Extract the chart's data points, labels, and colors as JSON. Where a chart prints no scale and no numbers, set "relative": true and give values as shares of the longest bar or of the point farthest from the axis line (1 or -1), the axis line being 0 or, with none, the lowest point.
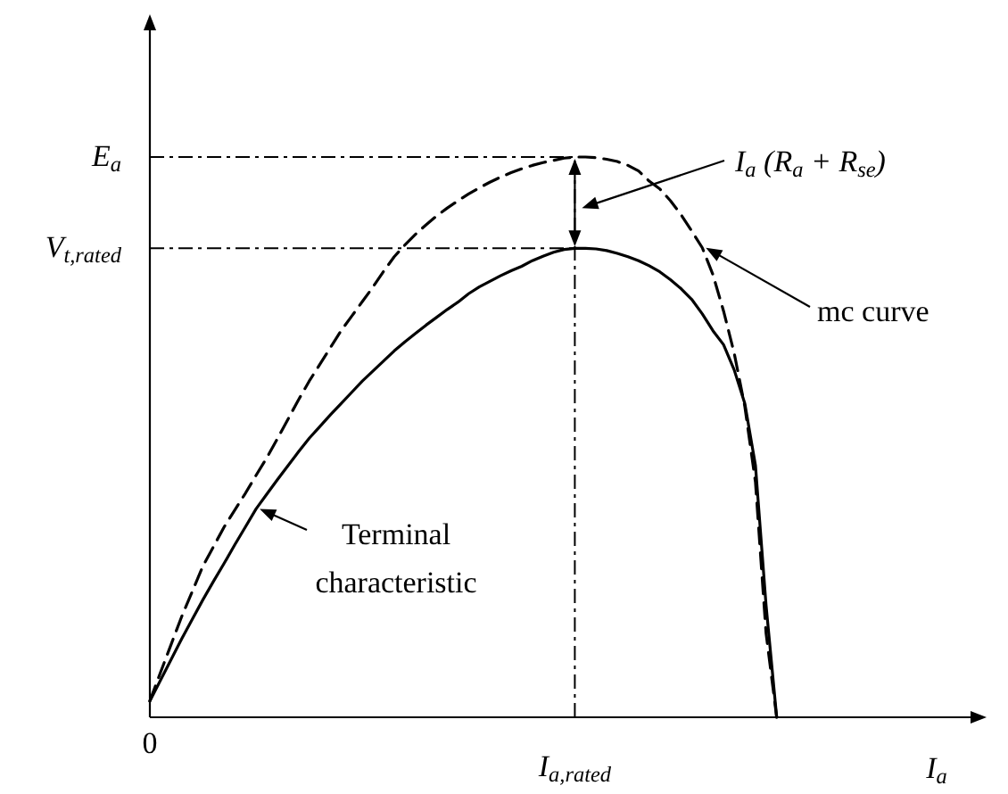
{
  "chart_data": {
    "type": "line",
    "relative": true,
    "xlabel": "I$_{a}$",
    "categories": [
      "0",
      null,
      null,
      null,
      null,
      null,
      null,
      null,
      null,
      null,
      null,
      null,
      null,
      null,
      null,
      null,
      null,
      null,
      null,
      null,
      null,
      null,
      null,
      null,
      null,
      null,
      null,
      null,
      null,
      null,
      null,
      null,
      null,
      null,
      null,
      null,
      null,
      null,
      null,
      null,
      "I$_{a,rated}$",
      null,
      null,
      null,
      null,
      null,
      null,
      null,
      null,
      null,
      null,
      null,
      null,
      null,
      null,
      null,
      null,
      null,
      null,
      null
    ],
    "series": [
      {
        "name": "mc curve",
        "color": "#000000",
        "line_style": "dashed",
        "values": [
          0.029,
          0.08,
          0.13,
          0.18,
          0.225,
          0.27,
          0.305,
          0.34,
          0.37,
          0.4,
          0.432,
          0.463,
          0.497,
          0.532,
          0.567,
          0.6,
          0.63,
          0.66,
          0.69,
          0.716,
          0.742,
          0.768,
          0.796,
          0.822,
          0.843,
          0.862,
          0.879,
          0.895,
          0.909,
          0.922,
          0.934,
          0.945,
          0.955,
          0.964,
          0.972,
          0.979,
          0.985,
          0.99,
          0.994,
          0.998,
          1.0,
          1.0,
          0.999,
          0.996,
          0.992,
          0.985,
          0.975,
          0.957,
          0.943,
          0.922,
          0.897,
          0.868,
          0.838,
          0.79,
          0.725,
          0.65,
          0.555,
          0.42,
          0.15,
          0
        ]
      },
      {
        "name": "Terminal characteristic",
        "color": "#000000",
        "line_style": "solid",
        "values": [
          0.029,
          0.066,
          0.103,
          0.14,
          0.175,
          0.21,
          0.243,
          0.275,
          0.308,
          0.34,
          0.372,
          0.398,
          0.424,
          0.449,
          0.474,
          0.498,
          0.519,
          0.54,
          0.56,
          0.58,
          0.6,
          0.618,
          0.636,
          0.654,
          0.67,
          0.685,
          0.7,
          0.714,
          0.728,
          0.741,
          0.756,
          0.768,
          0.778,
          0.788,
          0.797,
          0.805,
          0.815,
          0.823,
          0.83,
          0.835,
          0.837,
          0.837,
          0.836,
          0.833,
          0.828,
          0.822,
          0.815,
          0.806,
          0.795,
          0.781,
          0.765,
          0.746,
          0.72,
          0.69,
          0.665,
          0.62,
          0.56,
          0.45,
          0.2,
          0
        ]
      }
    ],
    "ref_lines": [
      {
        "axis": "y",
        "value": 1,
        "label": "E$_{a}$",
        "line_style": "dashdot"
      },
      {
        "axis": "y",
        "value": 0.837,
        "label": "V$_{t,rated}$",
        "line_style": "dashdot"
      }
    ],
    "annotations": [
      "I$_{a}$ (R$_{a}$ + R$_{se}$)"
    ]
  }
}
